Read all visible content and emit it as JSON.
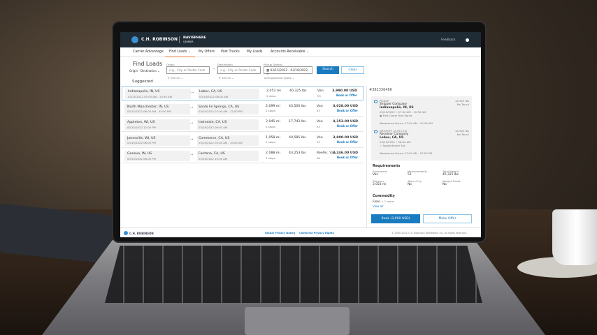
{
  "header": {
    "brand": "C.H. ROBINSON",
    "product": "NAVISPHERE",
    "product_sub": "CARRIER",
    "feedback": "Feedback",
    "user_icon": "user-circle-icon"
  },
  "nav": {
    "items": [
      {
        "label": "Carrier Advantage"
      },
      {
        "label": "Find Loads",
        "active": true,
        "dropdown": true
      },
      {
        "label": "My Offers"
      },
      {
        "label": "Post Trucks"
      },
      {
        "label": "My Loads"
      },
      {
        "label": "Accounts Receivable",
        "dropdown": true
      }
    ]
  },
  "search": {
    "title": "Find Loads",
    "mode": "Origin - Destination",
    "origin_label": "Origin",
    "origin_placeholder": "e.g., City or Postal Code",
    "origin_radius": "100 mi",
    "dest_label": "Destination",
    "dest_placeholder": "e.g., City or Postal Code",
    "dest_radius": "100 mi",
    "date_label": "Pickup Date(s)",
    "date_value": "03/15/2022 - 03/16/2022",
    "equipment": "All Equipment Types",
    "search_btn": "Search",
    "clear_btn": "Clear"
  },
  "suggested_label": "Suggested",
  "loads": [
    {
      "origin": "Indianapolis, IN, US",
      "origin_time": "03/15/2022 07:00 AM - 10:30 AM",
      "dest": "Lebec, CA, US",
      "dest_time": "03/19/2022 08:00 AM",
      "miles": "2,053 mi",
      "stops": "2 stops",
      "weight": "40,325 lbs",
      "equip": "Van",
      "size": "53",
      "price": "3,990.00 USD",
      "action": "Book or Offer"
    },
    {
      "origin": "North Manchester, IN, US",
      "origin_time": "03/15/2022 08:00 AM - 05:00 PM",
      "dest": "Santa Fe Springs, CA, US",
      "dest_time": "03/19/2022 07:00 AM - 12:00 PM",
      "miles": "2,099 mi",
      "stops": "2 stops",
      "weight": "43,500 lbs",
      "equip": "Van",
      "size": "53",
      "price": "3,028.00 USD",
      "action": "Book or Offer"
    },
    {
      "origin": "Appleton, WI, US",
      "origin_time": "03/15/2022 12:00 PM",
      "dest": "Irwindale, CA, US",
      "dest_time": "03/19/2022 09:00 AM",
      "miles": "2,045 mi",
      "stops": "2 stops",
      "weight": "17,742 lbs",
      "equip": "Van",
      "size": "53",
      "price": "4,353.00 USD",
      "action": "Book or Offer"
    },
    {
      "origin": "Janesville, WI, US",
      "origin_time": "03/15/2022 06:00 PM",
      "dest": "Commerce, CA, US",
      "dest_time": "03/19/2022 05:00 AM - 10:00 AM",
      "miles": "1,958 mi",
      "stops": "2 stops",
      "weight": "40,585 lbs",
      "equip": "Van",
      "size": "53",
      "price": "3,800.00 USD",
      "action": "Book or Offer"
    },
    {
      "origin": "Geneva, IN, US",
      "origin_time": "03/15/2022 06:00 PM",
      "dest": "Fontana, CA, US",
      "dest_time": "03/19/2022 10:00 AM",
      "miles": "2,088 mi",
      "stops": "2 stops",
      "weight": "43,253 lbs",
      "equip": "Reefer, Van",
      "size": "48",
      "price": "3,246.00 USD",
      "action": "Book or Offer"
    }
  ],
  "detail": {
    "id": "#382336466",
    "pickup": {
      "type": "PICKUP",
      "company": "Shipper Company",
      "city": "Indianapolis, IN, US",
      "time": "03/15/2022 • 07:00 AM - 10:30 AM",
      "note": "First Come First Serve",
      "weight": "40,325 lbs",
      "touch": "No Touch",
      "hours": "Warehouse Hours: 07:00 AM - 10:30 AM"
    },
    "dropoff": {
      "type": "DROPOFF (2,053 mi)",
      "company": "Receiver Company",
      "city": "Lebec, CA, US",
      "time": "03/19/2022 • 08:00 AM",
      "note": "Appointment Set",
      "weight": "40,325 lbs",
      "touch": "No Touch",
      "hours": "Warehouse Hours: 07:00 AM - 07:00 PM"
    },
    "requirements_title": "Requirements",
    "requirements": [
      {
        "label": "Equipment",
        "value": "Van"
      },
      {
        "label": "Measurements",
        "value": "53"
      },
      {
        "label": "Total Weight",
        "value": "40,325 lbs"
      },
      {
        "label": "Distance",
        "value": "2,053 mi"
      },
      {
        "label": "Team Only",
        "value": "No"
      },
      {
        "label": "Weight Ticket",
        "value": "No"
      }
    ],
    "commodity_title": "Commodity",
    "commodity": "Floor",
    "commodity_more": "+ 1 more",
    "view_all": "View all",
    "book_btn": "Book (3,990 USD)",
    "offer_btn": "Make Offer"
  },
  "footer": {
    "brand": "C.H. ROBINSON",
    "privacy": "Global Privacy Notice",
    "ca_privacy": "California Privacy Rights",
    "copyright": "© 2000-2022 C.H. Robinson Worldwide, Inc. All rights reserved."
  },
  "colors": {
    "header": "#1f2b35",
    "accent": "#1a7bbf",
    "nav_active": "#e8772e"
  }
}
